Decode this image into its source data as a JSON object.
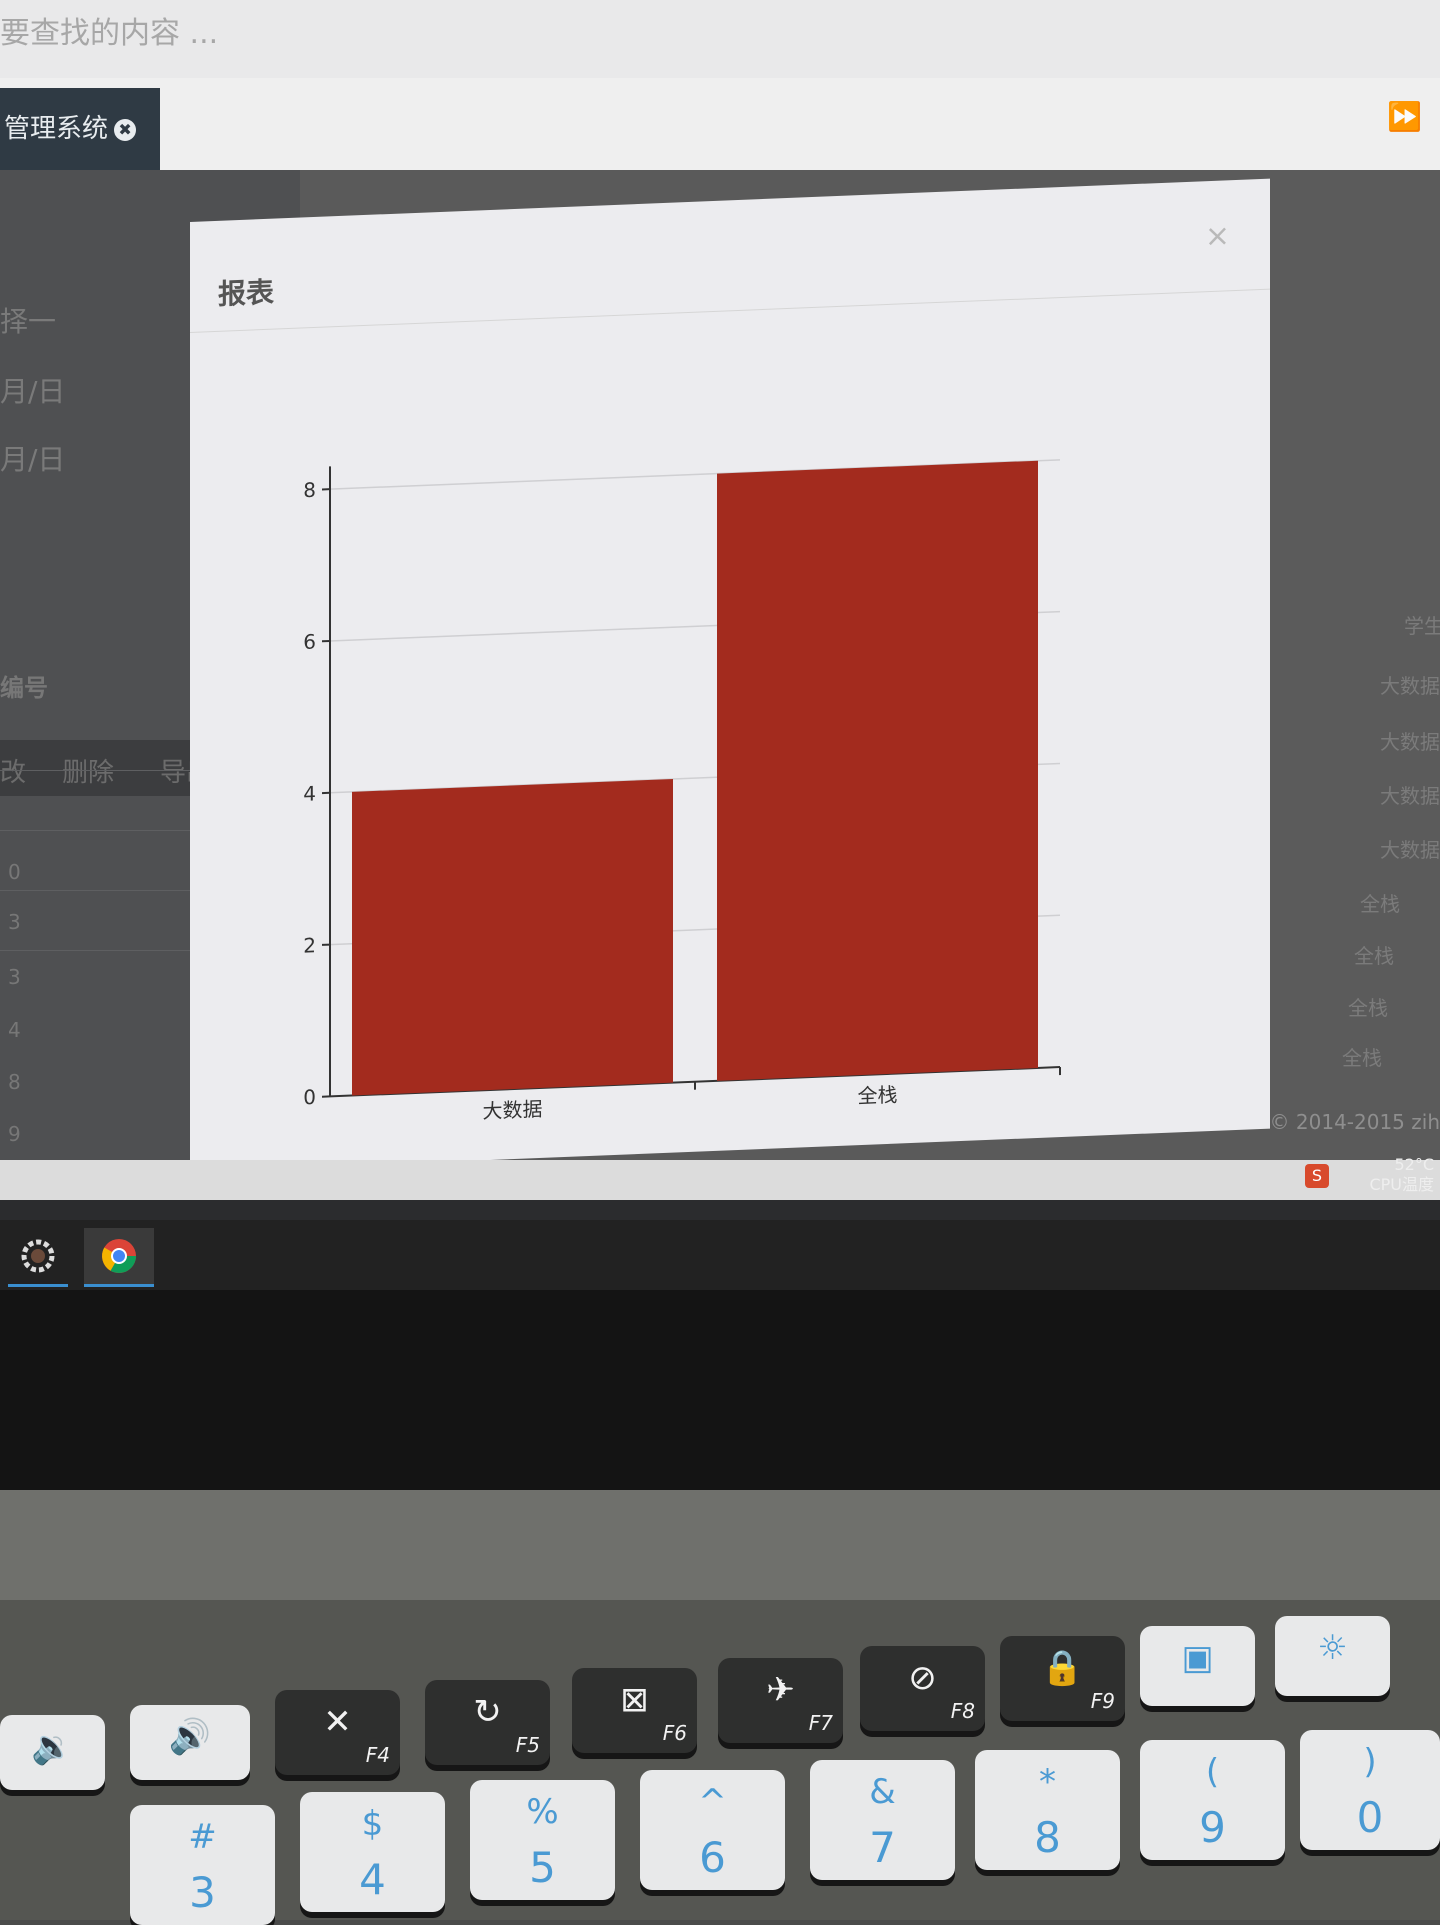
{
  "search": {
    "placeholder": "要查找的内容 ..."
  },
  "tab": {
    "label": "管理系统",
    "close_glyph": "✖"
  },
  "tab_scroll_glyph": "⏩",
  "left_panel": {
    "labels": [
      "择一",
      "月/日",
      "月/日"
    ],
    "toolbar": [
      "改",
      "删除",
      "导出"
    ],
    "column_header": "编号",
    "row_numbers": [
      "0",
      "3",
      "3",
      "4",
      "8",
      "9"
    ]
  },
  "right_panel": {
    "header": "学生",
    "cells": [
      "大数据",
      "大数据",
      "大数据",
      "大数据",
      "全栈",
      "全栈",
      "全栈",
      "全栈"
    ]
  },
  "modal": {
    "title": "报表",
    "close_glyph": "×"
  },
  "footer": {
    "copyright": "© 2014-2015 zih"
  },
  "tray": {
    "temperature": "52°C",
    "label": "CPU温度",
    "app_glyph": "S"
  },
  "keys": [
    {
      "main": "✕",
      "fn": "F4"
    },
    {
      "main": "↻",
      "fn": "F5"
    },
    {
      "main": "⊠",
      "fn": "F6"
    },
    {
      "main": "✈",
      "fn": "F7"
    },
    {
      "main": "⊘",
      "fn": "F8"
    },
    {
      "main": "🔒",
      "fn": "F9"
    }
  ],
  "number_keys": [
    {
      "top": "#",
      "bottom": "3"
    },
    {
      "top": "$",
      "bottom": "4"
    },
    {
      "top": "%",
      "bottom": "5"
    },
    {
      "top": "^",
      "bottom": "6"
    },
    {
      "top": "&",
      "bottom": "7"
    },
    {
      "top": "*",
      "bottom": "8"
    },
    {
      "top": "(",
      "bottom": "9"
    },
    {
      "top": ")",
      "bottom": "0"
    }
  ],
  "chart_data": {
    "type": "bar",
    "categories": [
      "大数据",
      "全栈"
    ],
    "values": [
      4,
      8
    ],
    "yticks": [
      0,
      2,
      4,
      6,
      8
    ],
    "ylim": [
      0,
      8.3
    ],
    "grid": true,
    "bar_color": "#a32b1e",
    "title": "",
    "xlabel": "",
    "ylabel": ""
  }
}
